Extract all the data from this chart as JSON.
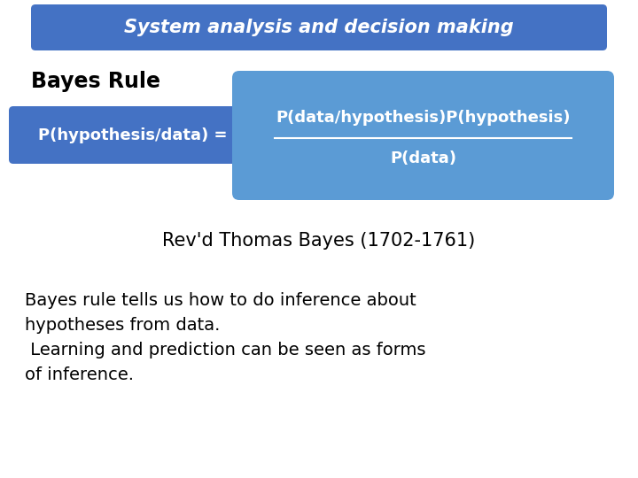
{
  "bg_color": "#ffffff",
  "title_text": "System analysis and decision making",
  "title_box_color": "#4472C4",
  "title_text_color": "#ffffff",
  "bayes_rule_text": "Bayes Rule",
  "left_box_text": "P(hypothesis/data) =",
  "left_box_color": "#4472C4",
  "right_box_numerator": "P(data/hypothesis)P(hypothesis)",
  "right_box_denominator": "P(data)",
  "right_box_color": "#5B9BD5",
  "box_text_color": "#ffffff",
  "revd_text": "Rev'd Thomas Bayes (1702-1761)",
  "body_text_line1": "Bayes rule tells us how to do inference about",
  "body_text_line2": "hypotheses from data.",
  "body_text_line3": " Learning and prediction can be seen as forms",
  "body_text_line4": "of inference."
}
